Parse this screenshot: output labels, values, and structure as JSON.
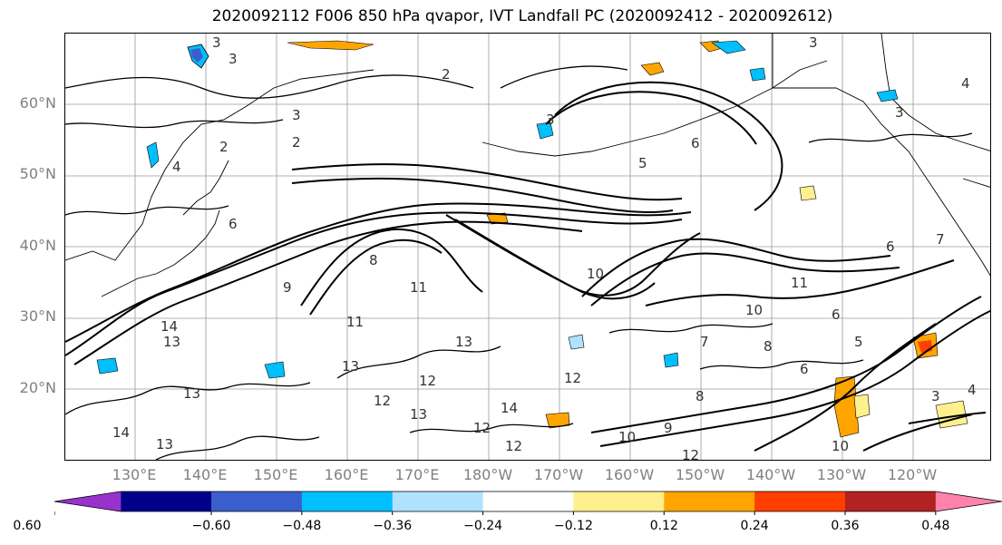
{
  "title": "2020092112 F006 850 hPa qvapor, IVT Landfall PC (2020092412 - 2020092612)",
  "map": {
    "lat_labels": [
      "60°N",
      "50°N",
      "40°N",
      "30°N",
      "20°N"
    ],
    "lon_labels": [
      "130°E",
      "140°E",
      "150°E",
      "160°E",
      "170°E",
      "180°W",
      "170°W",
      "160°W",
      "150°W",
      "140°W",
      "130°W",
      "120°W"
    ],
    "contour_labels": [
      "3",
      "3",
      "2",
      "3",
      "2",
      "4",
      "3",
      "5",
      "6",
      "3",
      "4",
      "3",
      "2",
      "6",
      "6",
      "7",
      "8",
      "9",
      "10",
      "11",
      "12",
      "13",
      "14",
      "11",
      "12",
      "13",
      "12",
      "13",
      "13",
      "14",
      "13",
      "12",
      "10",
      "12",
      "11",
      "10",
      "8",
      "6",
      "7",
      "8",
      "9",
      "10",
      "13",
      "12",
      "14",
      "5",
      "6",
      "3",
      "4"
    ]
  },
  "colorbar": {
    "ticks": [
      "−0.60",
      "−0.48",
      "−0.36",
      "−0.24",
      "−0.12",
      "0.12",
      "0.24",
      "0.36",
      "0.48",
      "0.60"
    ],
    "colors": [
      "#9932cc",
      "#00008b",
      "#3a5fcd",
      "#00bfff",
      "#b0e2ff",
      "#ffffff",
      "#fff08f",
      "#ffa500",
      "#ff3e00",
      "#b22222",
      "#ff82ab"
    ]
  }
}
